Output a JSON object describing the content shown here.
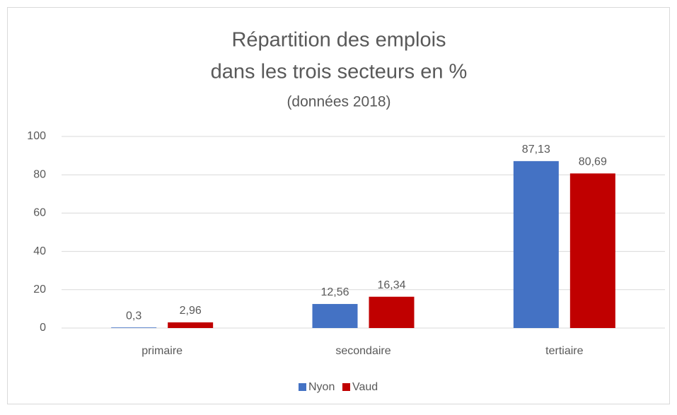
{
  "chart_data": {
    "type": "bar",
    "title": [
      "Répartition des emplois",
      "dans les trois secteurs en %"
    ],
    "subtitle": "(données 2018)",
    "categories": [
      "primaire",
      "secondaire",
      "tertiaire"
    ],
    "series": [
      {
        "name": "Nyon",
        "color": "#4472c4",
        "values": [
          0.3,
          12.56,
          87.13
        ],
        "value_labels": [
          "0,3",
          "12,56",
          "87,13"
        ]
      },
      {
        "name": "Vaud",
        "color": "#c00000",
        "values": [
          2.96,
          16.34,
          80.69
        ],
        "value_labels": [
          "2,96",
          "16,34",
          "80,69"
        ]
      }
    ],
    "ylim": [
      0,
      100
    ],
    "yticks": [
      0,
      20,
      40,
      60,
      80,
      100
    ],
    "grid": true,
    "legend": "bottom"
  }
}
